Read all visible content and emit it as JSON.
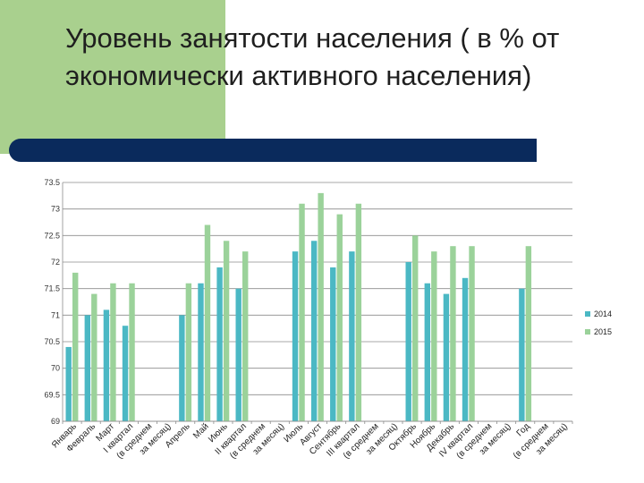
{
  "slide": {
    "title": "Уровень занятости населения ( в % от экономически активного населения)"
  },
  "colors": {
    "series_2014": "#4bb8c4",
    "series_2015": "#9bd29a",
    "title_bar": "#0a2a5c",
    "accent_block": "#a9d08e"
  },
  "chart_data": {
    "type": "bar",
    "title": "",
    "xlabel": "",
    "ylabel": "",
    "ylim": [
      69,
      73.5
    ],
    "yticks": [
      69,
      69.5,
      70,
      70.5,
      71,
      71.5,
      72,
      72.5,
      73,
      73.5
    ],
    "ytick_labels": [
      "69",
      "69.5",
      "70",
      "70.5",
      "71",
      "71.5",
      "72",
      "72.5",
      "73",
      "73.5"
    ],
    "grid": true,
    "legend_position": "right",
    "categories": [
      "Январь",
      "Февраль",
      "Март",
      "I квартал",
      "(в среднем",
      "за месяц)",
      "Апрель",
      "Май",
      "Июнь",
      "II квартал",
      "(в среднем",
      "за месяц)",
      "Июль",
      "Август",
      "Сентябрь",
      "III квартал",
      "(в среднем",
      "за месяц)",
      "Октябрь",
      "Ноябрь",
      "Декабрь",
      "IV квартал",
      "(в среднем",
      "за месяц)",
      "Год",
      "(в среднем",
      "за месяц)"
    ],
    "series": [
      {
        "name": "2014",
        "values": [
          70.4,
          71.0,
          71.1,
          70.8,
          null,
          null,
          71.0,
          71.6,
          71.9,
          71.5,
          null,
          null,
          72.2,
          72.4,
          71.9,
          72.2,
          null,
          null,
          72.0,
          71.6,
          71.4,
          71.7,
          null,
          null,
          71.5,
          null,
          null
        ]
      },
      {
        "name": "2015",
        "values": [
          71.8,
          71.4,
          71.6,
          71.6,
          null,
          null,
          71.6,
          72.7,
          72.4,
          72.2,
          null,
          null,
          73.1,
          73.3,
          72.9,
          73.1,
          null,
          null,
          72.5,
          72.2,
          72.3,
          72.3,
          null,
          null,
          72.3,
          null,
          null
        ]
      }
    ]
  }
}
